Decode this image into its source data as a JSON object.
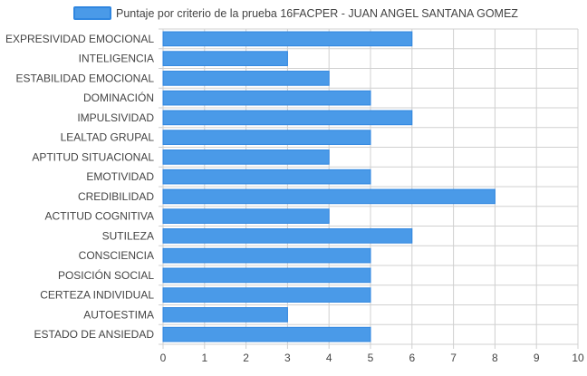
{
  "colors": {
    "bar_fill": "#4a9ae8",
    "bar_stroke": "#2f86e0",
    "grid": "#d0d0d0",
    "text": "#444444"
  },
  "chart_data": {
    "type": "bar",
    "orientation": "horizontal",
    "legend": {
      "label": "Puntaje por criterio de la prueba 16FACPER - JUAN ANGEL SANTANA GOMEZ",
      "position": "top"
    },
    "categories": [
      "EXPRESIVIDAD EMOCIONAL",
      "INTELIGENCIA",
      "ESTABILIDAD EMOCIONAL",
      "DOMINACIÓN",
      "IMPULSIVIDAD",
      "LEALTAD GRUPAL",
      "APTITUD SITUACIONAL",
      "EMOTIVIDAD",
      "CREDIBILIDAD",
      "ACTITUD COGNITIVA",
      "SUTILEZA",
      "CONSCIENCIA",
      "POSICIÓN SOCIAL",
      "CERTEZA INDIVIDUAL",
      "AUTOESTIMA",
      "ESTADO DE ANSIEDAD"
    ],
    "series": [
      {
        "name": "Puntaje por criterio de la prueba 16FACPER - JUAN ANGEL SANTANA GOMEZ",
        "values": [
          6,
          3,
          4,
          5,
          6,
          5,
          4,
          5,
          8,
          4,
          6,
          5,
          5,
          5,
          3,
          5
        ]
      }
    ],
    "xlim": [
      0,
      10
    ],
    "xticks": [
      "0",
      "1",
      "2",
      "3",
      "4",
      "5",
      "6",
      "7",
      "8",
      "9",
      "10"
    ],
    "grid": true
  }
}
